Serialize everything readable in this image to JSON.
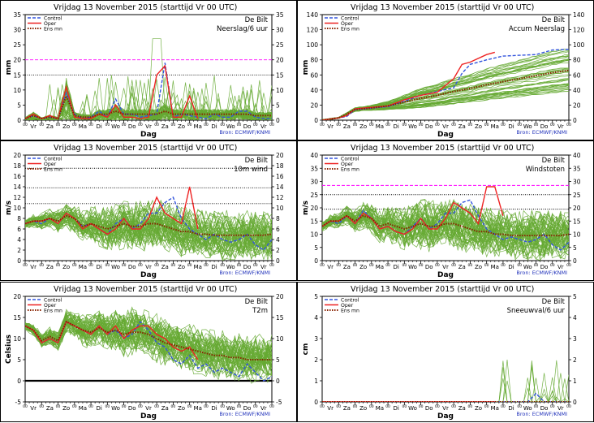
{
  "source_note": "Bron: ECMWF/KNMI",
  "colors": {
    "control": "#3355dd",
    "oper": "#ee2222",
    "ensmn": "#882200",
    "members": "#66aa33",
    "threshold": "#ff00ff",
    "ref": "#000000"
  },
  "days": [
    "Vr",
    "Za",
    "Zo",
    "Ma",
    "Di",
    "Wo",
    "Do",
    "Vr",
    "Za",
    "Zo",
    "Ma",
    "Di",
    "Wo",
    "Do",
    "Vr"
  ],
  "legend": {
    "control": "Control",
    "oper": "Oper",
    "ensmn": "Ens mn"
  },
  "chart_data": [
    {
      "type": "line",
      "title": "Vrijdag   13 November  2015   (starttijd  Vr 00 UTC)",
      "location": "De Bilt",
      "variable": "Neerslag/6 uur",
      "xlabel": "Dag",
      "ylabel": "mm",
      "ylim": [
        0,
        35
      ],
      "yticks": [
        0,
        5,
        10,
        15,
        20,
        25,
        30,
        35
      ],
      "hlines": [
        {
          "y": 20,
          "color": "magenta",
          "dash": "dashed"
        },
        {
          "y": 15,
          "color": "black",
          "dash": "dotted"
        }
      ],
      "x_days": [
        0,
        15
      ],
      "series": [
        {
          "name": "Control",
          "x": [
            0,
            0.5,
            1,
            1.5,
            2,
            2.5,
            3,
            3.5,
            4,
            4.5,
            5,
            5.5,
            6,
            6.5,
            7,
            7.5,
            8,
            8.5,
            9,
            9.5,
            10,
            10.5,
            11,
            11.5,
            12,
            12.5,
            13,
            13.5,
            14,
            14.5,
            15
          ],
          "y": [
            0.5,
            1.5,
            0.5,
            1,
            0.5,
            9,
            2,
            0.5,
            1,
            3,
            1,
            7,
            2,
            2,
            1,
            1.5,
            2,
            19,
            1,
            2,
            1.5,
            1,
            0.5,
            2,
            1,
            1,
            3,
            3,
            1,
            0.5,
            0.5
          ]
        },
        {
          "name": "Oper",
          "x": [
            0,
            0.5,
            1,
            1.5,
            2,
            2.5,
            3,
            3.5,
            4,
            4.5,
            5,
            5.5,
            6,
            6.5,
            7,
            7.5,
            8,
            8.5,
            9,
            9.5,
            10,
            10.5
          ],
          "y": [
            0.5,
            2,
            0.5,
            1.5,
            0.5,
            11,
            1,
            0.5,
            0.5,
            2,
            1,
            5,
            1,
            1,
            0.5,
            1,
            15,
            18,
            1,
            1,
            8,
            0.5
          ]
        },
        {
          "name": "Ens mn",
          "x": [
            0,
            0.5,
            1,
            1.5,
            2,
            2.5,
            3,
            3.5,
            4,
            4.5,
            5,
            5.5,
            6,
            6.5,
            7,
            7.5,
            8,
            8.5,
            9,
            9.5,
            10,
            10.5,
            11,
            11.5,
            12,
            12.5,
            13,
            13.5,
            14,
            14.5,
            15
          ],
          "y": [
            0.5,
            1.5,
            0.5,
            1,
            0.5,
            8,
            1.5,
            1,
            1,
            2,
            2,
            3,
            2,
            2,
            2,
            2,
            2,
            3,
            2,
            2,
            2,
            2,
            2,
            2,
            2,
            2,
            2,
            2,
            1.5,
            1.5,
            1.5
          ]
        }
      ]
    },
    {
      "type": "line",
      "title": "Vrijdag   13 November  2015   (starttijd  Vr 00 UTC)",
      "location": "De Bilt",
      "variable": "Accum Neerslag",
      "xlabel": "Dag",
      "ylabel": "mm",
      "ylim": [
        0,
        140
      ],
      "yticks": [
        0,
        20,
        40,
        60,
        80,
        100,
        120,
        140
      ],
      "hlines": [],
      "series": [
        {
          "name": "Control",
          "x": [
            0,
            1,
            1.5,
            2,
            3,
            4,
            5,
            6,
            7,
            8,
            8.5,
            9,
            10,
            11,
            12,
            13,
            14,
            15
          ],
          "y": [
            0,
            3,
            5,
            14,
            16,
            18,
            25,
            33,
            38,
            43,
            62,
            74,
            80,
            85,
            86,
            87,
            93,
            94
          ]
        },
        {
          "name": "Oper",
          "x": [
            0,
            1,
            1.5,
            2,
            3,
            4,
            5,
            6,
            7,
            8,
            8.5,
            9,
            10,
            10.5
          ],
          "y": [
            0,
            3,
            6,
            15,
            17,
            19,
            27,
            33,
            37,
            55,
            74,
            77,
            87,
            90
          ]
        },
        {
          "name": "Ens mn",
          "x": [
            0,
            1,
            2,
            3,
            4,
            5,
            6,
            7,
            8,
            9,
            10,
            11,
            12,
            13,
            14,
            15
          ],
          "y": [
            0,
            3,
            14,
            16,
            19,
            24,
            29,
            33,
            38,
            42,
            47,
            51,
            55,
            59,
            63,
            66
          ]
        }
      ]
    },
    {
      "type": "line",
      "title": "Vrijdag   13 November  2015   (starttijd  Vr 00 UTC)",
      "location": "De Bilt",
      "variable": "10m wind",
      "xlabel": "Dag",
      "ylabel": "m/s",
      "ylim": [
        0,
        20
      ],
      "yticks": [
        0,
        2,
        4,
        6,
        8,
        10,
        12,
        14,
        16,
        18,
        20
      ],
      "hlines": [
        {
          "y": 17.5,
          "color": "black",
          "dash": "dotted"
        },
        {
          "y": 13.8,
          "color": "black",
          "dash": "dotted"
        },
        {
          "y": 10.8,
          "color": "black",
          "dash": "dotted"
        }
      ],
      "series": [
        {
          "name": "Control",
          "x": [
            0,
            0.5,
            1,
            1.5,
            2,
            2.5,
            3,
            3.5,
            4,
            4.5,
            5,
            5.5,
            6,
            6.5,
            7,
            7.5,
            8,
            8.5,
            9,
            9.5,
            10,
            10.5,
            11,
            11.5,
            12,
            12.5,
            13,
            13.5,
            14,
            14.5,
            15
          ],
          "y": [
            7,
            7.5,
            7,
            8,
            7,
            9,
            8,
            6.5,
            7,
            6,
            5,
            7,
            8,
            6,
            7,
            9,
            9,
            11,
            12,
            8,
            6,
            5,
            4,
            5,
            4,
            3.5,
            4,
            5,
            3,
            2,
            4
          ]
        },
        {
          "name": "Oper",
          "x": [
            0,
            0.5,
            1,
            1.5,
            2,
            2.5,
            3,
            3.5,
            4,
            4.5,
            5,
            5.5,
            6,
            6.5,
            7,
            7.5,
            8,
            8.5,
            9,
            9.5,
            10,
            10.5
          ],
          "y": [
            7,
            7.5,
            7.5,
            8,
            7,
            9,
            8,
            6,
            7,
            6,
            5,
            6,
            8,
            6,
            6,
            8,
            12,
            9,
            8,
            7,
            14,
            6
          ]
        },
        {
          "name": "Ens mn",
          "x": [
            0,
            0.5,
            1,
            1.5,
            2,
            2.5,
            3,
            3.5,
            4,
            4.5,
            5,
            5.5,
            6,
            6.5,
            7,
            7.5,
            8,
            8.5,
            9,
            9.5,
            10,
            10.5,
            11,
            11.5,
            12,
            12.5,
            13,
            13.5,
            14,
            14.5,
            15
          ],
          "y": [
            7,
            7.5,
            7.5,
            8,
            7.5,
            8.5,
            8,
            6.5,
            7,
            6.5,
            6,
            6.5,
            7,
            6.5,
            6.5,
            7,
            7,
            6.5,
            6,
            5.5,
            5.5,
            5,
            5,
            4.8,
            4.8,
            4.8,
            4.8,
            4.8,
            4.8,
            4.8,
            5
          ]
        }
      ]
    },
    {
      "type": "line",
      "title": "Vrijdag   13 November  2015   (starttijd  Vr 00 UTC)",
      "location": "De Bilt",
      "variable": "Windstoten",
      "xlabel": "Dag",
      "ylabel": "m/s",
      "ylim": [
        0,
        40
      ],
      "yticks": [
        0,
        5,
        10,
        15,
        20,
        25,
        30,
        35,
        40
      ],
      "hlines": [
        {
          "y": 28.5,
          "color": "magenta",
          "dash": "dashed"
        },
        {
          "y": 25,
          "color": "black",
          "dash": "dotted"
        },
        {
          "y": 19.5,
          "color": "black",
          "dash": "dotted"
        }
      ],
      "series": [
        {
          "name": "Control",
          "x": [
            0,
            0.5,
            1,
            1.5,
            2,
            2.5,
            3,
            3.5,
            4,
            4.5,
            5,
            5.5,
            6,
            6.5,
            7,
            7.5,
            8,
            8.5,
            9,
            9.5,
            10,
            10.5,
            11,
            11.5,
            12,
            12.5,
            13,
            13.5,
            14,
            14.5,
            15
          ],
          "y": [
            13,
            15,
            14,
            17,
            14,
            19,
            16,
            12,
            13,
            11,
            10,
            13,
            16,
            12,
            14,
            18,
            18,
            22,
            23,
            17,
            12,
            10,
            8,
            9,
            8,
            7,
            8,
            10,
            6,
            4,
            7
          ]
        },
        {
          "name": "Oper",
          "x": [
            0,
            0.5,
            1,
            1.5,
            2,
            2.5,
            3,
            3.5,
            4,
            4.5,
            5,
            5.5,
            6,
            6.5,
            7,
            7.5,
            8,
            8.5,
            9,
            9.5,
            10,
            10.5,
            11,
            11.5,
            12,
            12.5,
            13,
            13.5,
            14,
            14.5
          ],
          "y": [
            13,
            15,
            15,
            17,
            14,
            18,
            16,
            12,
            13,
            11,
            10,
            12,
            16,
            12,
            12,
            16,
            22,
            20,
            18,
            14,
            28,
            28,
            17,
            null,
            null,
            null,
            null,
            null,
            null,
            null
          ]
        },
        {
          "name": "Ens mn",
          "x": [
            0,
            0.5,
            1,
            1.5,
            2,
            2.5,
            3,
            3.5,
            4,
            4.5,
            5,
            5.5,
            6,
            6.5,
            7,
            7.5,
            8,
            8.5,
            9,
            9.5,
            10,
            10.5,
            11,
            11.5,
            12,
            12.5,
            13,
            13.5,
            14,
            14.5,
            15
          ],
          "y": [
            13,
            15,
            15,
            17,
            15,
            17,
            16,
            13,
            14,
            13,
            12,
            13,
            14,
            13,
            13,
            14,
            14,
            13,
            12,
            11,
            11,
            10,
            10,
            9.5,
            9.5,
            9.5,
            9.5,
            9.5,
            9.5,
            9.5,
            10
          ]
        }
      ]
    },
    {
      "type": "line",
      "title": "Vrijdag   13 November  2015   (starttijd  Vr 00 UTC)",
      "location": "De Bilt",
      "variable": "T2m",
      "xlabel": "Dag",
      "ylabel": "Celsius",
      "ylim": [
        -5,
        20
      ],
      "yticks": [
        -5,
        0,
        5,
        10,
        15,
        20
      ],
      "hlines": [
        {
          "y": 0,
          "color": "black",
          "dash": "solid-bold"
        }
      ],
      "series": [
        {
          "name": "Control",
          "x": [
            0,
            0.5,
            1,
            1.5,
            2,
            2.5,
            3,
            3.5,
            4,
            4.5,
            5,
            5.5,
            6,
            6.5,
            7,
            7.5,
            8,
            8.5,
            9,
            9.5,
            10,
            10.5,
            11,
            11.5,
            12,
            12.5,
            13,
            13.5,
            14,
            14.5,
            15
          ],
          "y": [
            13,
            12,
            9,
            10,
            9,
            14,
            13,
            12,
            11,
            13,
            11,
            12,
            10,
            11,
            14,
            12,
            9,
            8,
            5,
            4,
            6,
            3,
            4,
            2,
            3,
            2,
            1,
            4,
            2,
            0,
            1
          ]
        },
        {
          "name": "Oper",
          "x": [
            0,
            0.5,
            1,
            1.5,
            2,
            2.5,
            3,
            3.5,
            4,
            4.5,
            5,
            5.5,
            6,
            6.5,
            7,
            7.5,
            8,
            8.5,
            9,
            9.5,
            10,
            10.5
          ],
          "y": [
            13,
            12,
            9,
            10,
            9,
            14,
            13,
            12,
            11,
            13,
            11,
            13,
            10,
            12,
            13,
            13,
            11,
            10,
            8,
            7,
            8,
            5
          ]
        },
        {
          "name": "Ens mn",
          "x": [
            0,
            0.5,
            1,
            1.5,
            2,
            2.5,
            3,
            3.5,
            4,
            4.5,
            5,
            5.5,
            6,
            6.5,
            7,
            7.5,
            8,
            8.5,
            9,
            9.5,
            10,
            10.5,
            11,
            11.5,
            12,
            12.5,
            13,
            13.5,
            14,
            14.5,
            15
          ],
          "y": [
            13,
            12,
            9.5,
            10.5,
            9.5,
            14,
            13,
            12,
            11.5,
            12.5,
            11.5,
            12,
            11,
            11.5,
            11.5,
            11,
            10,
            9,
            8.5,
            8,
            7.5,
            7,
            6.5,
            6,
            6,
            5.5,
            5.5,
            5,
            5,
            5,
            5
          ]
        }
      ]
    },
    {
      "type": "line",
      "title": "Vrijdag   13 November  2015   (starttijd  Vr 00 UTC)",
      "location": "De Bilt",
      "variable": "Sneeuwval/6 uur",
      "xlabel": "Dag",
      "ylabel": "cm",
      "ylim": [
        0,
        5
      ],
      "yticks": [
        0,
        1,
        2,
        3,
        4,
        5
      ],
      "hlines": [],
      "series": [
        {
          "name": "Control",
          "x": [
            0,
            11,
            11.5,
            12,
            12.5,
            13,
            13.5,
            14,
            15
          ],
          "y": [
            0,
            0,
            0,
            0,
            0,
            0.4,
            0,
            0,
            0
          ]
        },
        {
          "name": "Oper",
          "x": [
            0,
            10.5
          ],
          "y": [
            0,
            0
          ]
        },
        {
          "name": "Ens mn",
          "x": [
            0,
            15
          ],
          "y": [
            0,
            0
          ]
        }
      ]
    }
  ]
}
